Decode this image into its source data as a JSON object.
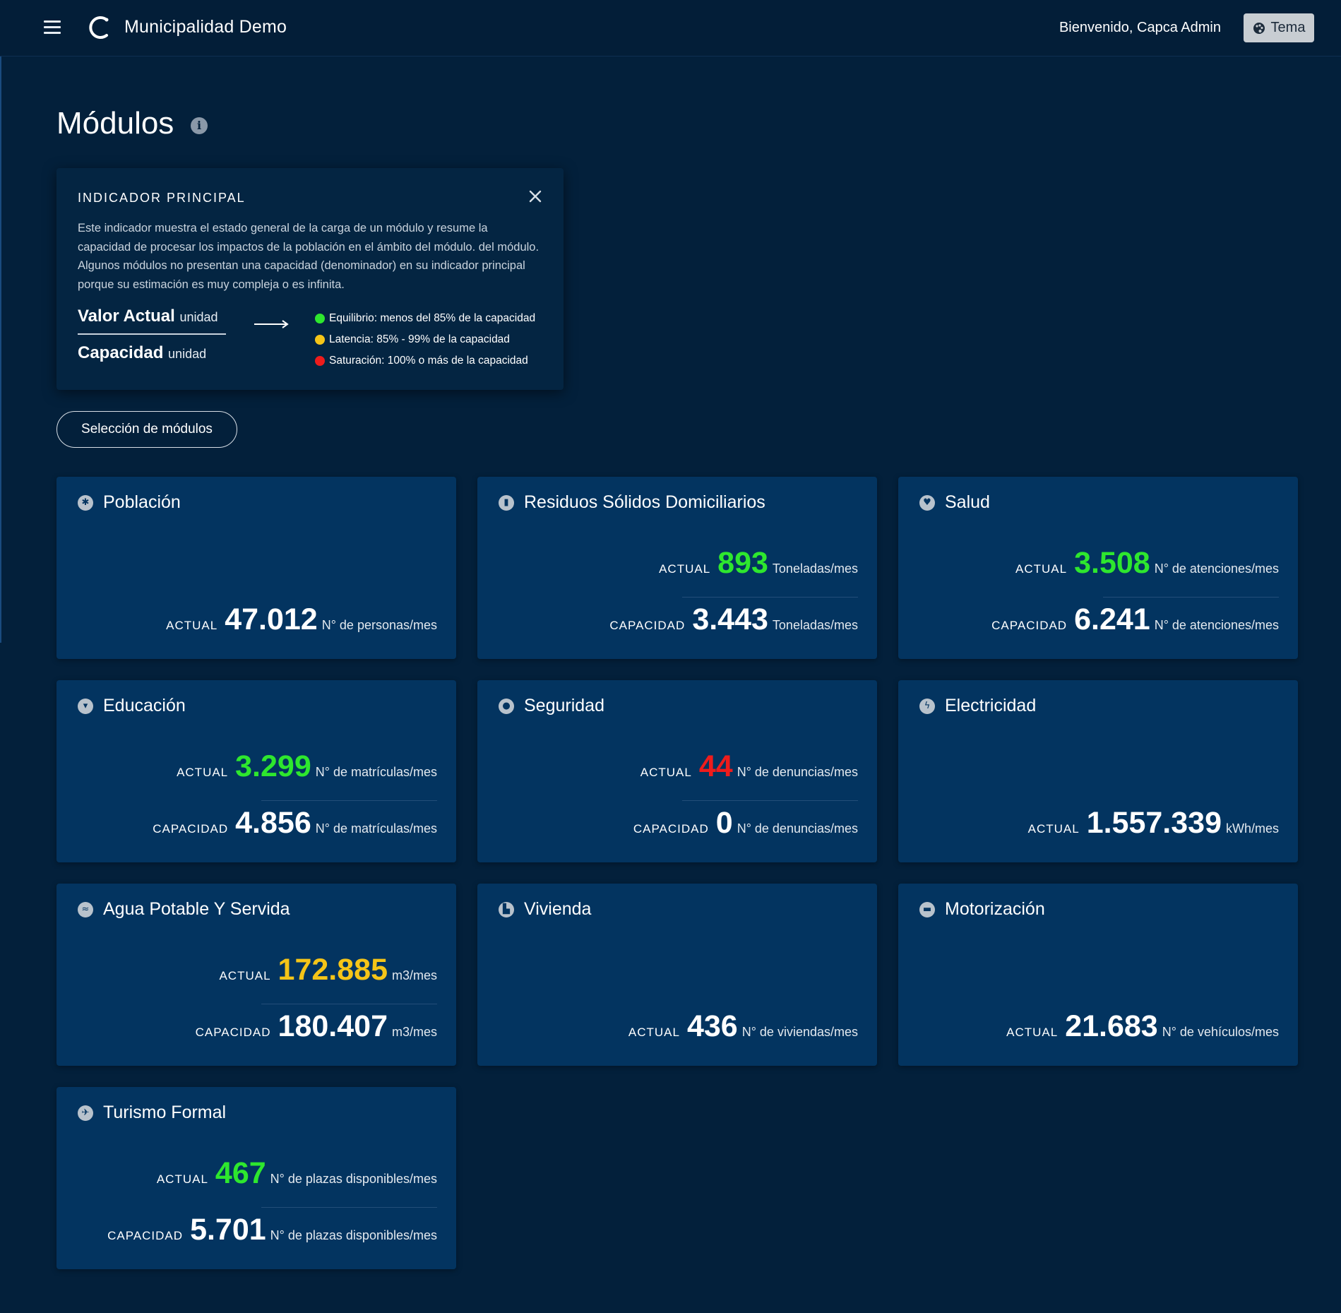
{
  "header": {
    "app_title": "Municipalidad Demo",
    "welcome": "Bienvenido, Capca Admin",
    "theme_label": "Tema"
  },
  "page": {
    "title": "Módulos"
  },
  "indicator": {
    "title": "INDICADOR PRINCIPAL",
    "description": "Este indicador muestra el estado general de la carga de un módulo y resume la capacidad de procesar los impactos de la población en el ámbito del módulo. del módulo. Algunos módulos no presentan una capacidad (denominador) en su indicador principal porque su estimación es muy compleja o es infinita.",
    "numerator": "Valor Actual",
    "denominator": "Capacidad",
    "unit_word": "unidad",
    "legend": [
      {
        "text": "Equilibrio: menos del 85% de la capacidad",
        "color": "#2ee72e"
      },
      {
        "text": "Latencia: 85% - 99% de la capacidad",
        "color": "#f5c518"
      },
      {
        "text": "Saturación: 100% o más de la capacidad",
        "color": "#ee1c1c"
      }
    ]
  },
  "select_button": "Selección de módulos",
  "labels": {
    "actual": "ACTUAL",
    "capacity": "CAPACIDAD"
  },
  "modules": [
    {
      "name": "Población",
      "icon": "population-icon",
      "actual": "47.012",
      "actual_status": "neutral",
      "unit": "N° de personas/mes",
      "capacity": null
    },
    {
      "name": "Residuos Sólidos Domiciliarios",
      "icon": "trash-icon",
      "actual": "893",
      "actual_status": "green",
      "unit": "Toneladas/mes",
      "capacity": "3.443"
    },
    {
      "name": "Salud",
      "icon": "heart-icon",
      "actual": "3.508",
      "actual_status": "green",
      "unit": "N° de atenciones/mes",
      "capacity": "6.241"
    },
    {
      "name": "Educación",
      "icon": "education-icon",
      "actual": "3.299",
      "actual_status": "green",
      "unit": "N° de matrículas/mes",
      "capacity": "4.856"
    },
    {
      "name": "Seguridad",
      "icon": "police-icon",
      "actual": "44",
      "actual_status": "red",
      "unit": "N° de denuncias/mes",
      "capacity": "0"
    },
    {
      "name": "Electricidad",
      "icon": "bolt-icon",
      "actual": "1.557.339",
      "actual_status": "neutral",
      "unit": "kWh/mes",
      "capacity": null
    },
    {
      "name": "Agua Potable Y Servida",
      "icon": "water-icon",
      "actual": "172.885",
      "actual_status": "yellow",
      "unit": "m3/mes",
      "capacity": "180.407"
    },
    {
      "name": "Vivienda",
      "icon": "building-icon",
      "actual": "436",
      "actual_status": "neutral",
      "unit": "N° de viviendas/mes",
      "capacity": null
    },
    {
      "name": "Motorización",
      "icon": "car-icon",
      "actual": "21.683",
      "actual_status": "neutral",
      "unit": "N° de vehículos/mes",
      "capacity": null
    },
    {
      "name": "Turismo Formal",
      "icon": "tourism-icon",
      "actual": "467",
      "actual_status": "green",
      "unit": "N° de plazas disponibles/mes",
      "capacity": "5.701"
    }
  ]
}
